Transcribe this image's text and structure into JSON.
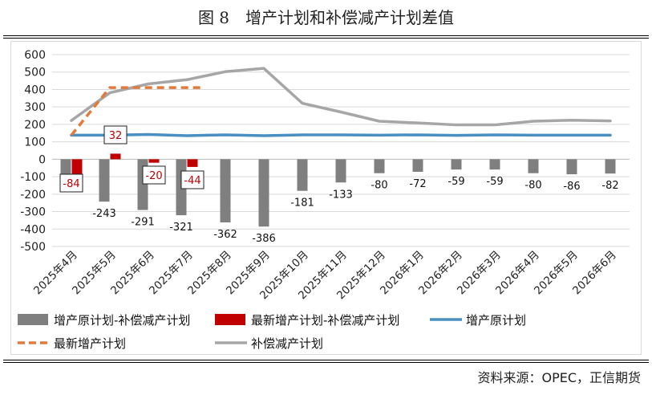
{
  "page": {
    "title": "图 8　增产计划和补偿减产计划差值",
    "source": "资料来源：OPEC，正信期货"
  },
  "chart_data": {
    "type": "bar",
    "categories": [
      "2025年4月",
      "2025年5月",
      "2025年6月",
      "2025年7月",
      "2025年8月",
      "2025年9月",
      "2025年10月",
      "2025年11月",
      "2025年12月",
      "2026年1月",
      "2026年2月",
      "2026年3月",
      "2026年4月",
      "2026年5月",
      "2026年6月"
    ],
    "ylim": [
      -500,
      600
    ],
    "yticks": [
      -500,
      -400,
      -300,
      -200,
      -100,
      0,
      100,
      200,
      300,
      400,
      500,
      600
    ],
    "grid": true,
    "legend_position": "bottom",
    "series": [
      {
        "name": "增产原计划-补偿减产计划",
        "kind": "bar",
        "color": "#7f7f7f",
        "values": [
          -84,
          -243,
          -291,
          -321,
          -362,
          -386,
          -181,
          -133,
          -80,
          -72,
          -59,
          -59,
          -80,
          -86,
          -82
        ],
        "data_labels": [
          "-84",
          "-243",
          "-291",
          "-321",
          "-362",
          "-386",
          "-181",
          "-133",
          "-80",
          "-72",
          "-59",
          "-59",
          "-80",
          "-86",
          "-82"
        ]
      },
      {
        "name": "最新增产计划-补偿减产计划",
        "kind": "bar",
        "color": "#c00000",
        "values": [
          -84,
          32,
          -20,
          -44,
          null,
          null,
          null,
          null,
          null,
          null,
          null,
          null,
          null,
          null,
          null
        ],
        "data_labels": [
          "32",
          "-20",
          "-44"
        ]
      },
      {
        "name": "增产原计划",
        "kind": "line",
        "color": "#4a8fc2",
        "dash": "solid",
        "values": [
          138,
          138,
          142,
          135,
          140,
          135,
          140,
          140,
          138,
          140,
          137,
          140,
          138,
          138,
          138
        ]
      },
      {
        "name": "最新增产计划",
        "kind": "line",
        "color": "#e07b39",
        "dash": "dashed",
        "values": [
          138,
          411,
          411,
          411,
          null,
          null,
          null,
          null,
          null,
          null,
          null,
          null,
          null,
          null,
          null
        ]
      },
      {
        "name": "补偿减产计划",
        "kind": "line",
        "color": "#a6a6a6",
        "dash": "solid",
        "values": [
          222,
          381,
          432,
          456,
          502,
          521,
          321,
          271,
          218,
          208,
          197,
          197,
          218,
          224,
          220
        ]
      }
    ]
  }
}
